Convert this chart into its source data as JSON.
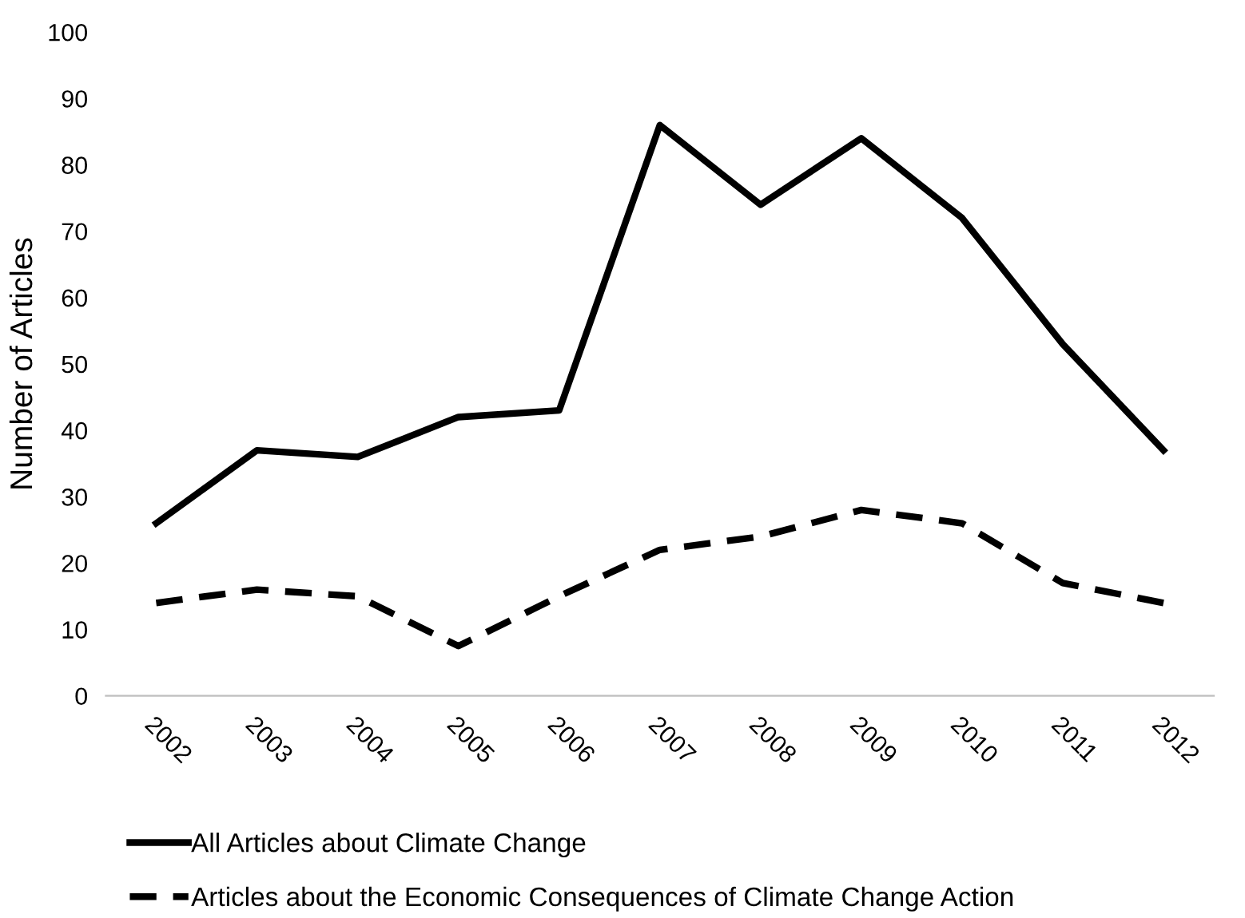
{
  "chart_data": {
    "type": "line",
    "ylabel": "Number of Articles",
    "categories": [
      "2002",
      "2003",
      "2004",
      "2005",
      "2006",
      "2007",
      "2008",
      "2009",
      "2010",
      "2011",
      "2012"
    ],
    "series": [
      {
        "name": "All Articles about Climate Change",
        "color": "#000000",
        "line_style": "solid",
        "values": [
          26,
          37,
          36,
          42,
          43,
          86,
          74,
          84,
          72,
          53,
          37
        ]
      },
      {
        "name": "Articles about the Economic Consequences of Climate Change Action",
        "color": "#000000",
        "line_style": "dashed",
        "values": [
          14,
          16,
          15,
          7.5,
          15,
          22,
          24,
          28,
          26,
          17,
          14
        ]
      }
    ],
    "ylim": [
      0,
      100
    ],
    "yticks": [
      0,
      10,
      20,
      30,
      40,
      50,
      60,
      70,
      80,
      90,
      100
    ],
    "grid": false,
    "legend": "bottom",
    "marker": "none"
  }
}
